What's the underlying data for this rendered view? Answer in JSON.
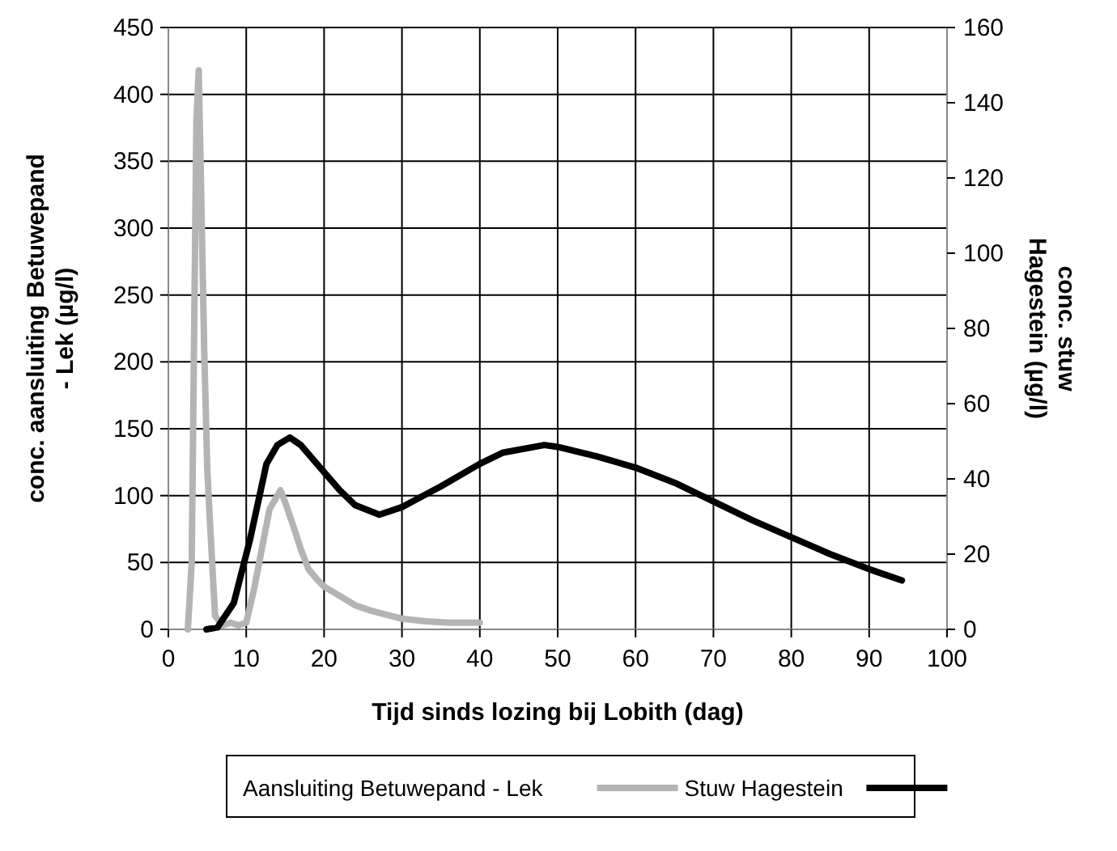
{
  "chart_data": {
    "type": "line",
    "xlabel": "Tijd sinds lozing bij Lobith (dag)",
    "ylabel": "conc. aansluiting Betuwepand - Lek (µg/l)",
    "y2label": "conc. stuw Hagestein (µg/l)",
    "xlim": [
      0,
      100
    ],
    "xticks": [
      0,
      10,
      20,
      30,
      40,
      50,
      60,
      70,
      80,
      90,
      100
    ],
    "ylim": [
      0,
      450
    ],
    "yticks": [
      0,
      50,
      100,
      150,
      200,
      250,
      300,
      350,
      400,
      450
    ],
    "y2lim": [
      0,
      160
    ],
    "y2ticks": [
      0,
      20,
      40,
      60,
      80,
      100,
      120,
      140,
      160
    ],
    "grid": true,
    "legend": "bottom",
    "marker": "none",
    "line_style": "solid",
    "series": [
      {
        "name": "Aansluiting Betuwepand - Lek",
        "color": "#b4b4b4",
        "x": [
          2.5,
          3.0,
          3.6,
          3.9,
          4.2,
          4.6,
          5.0,
          5.3,
          6.0,
          7,
          8,
          9,
          10,
          11,
          12,
          13,
          14.4,
          15,
          16,
          17,
          18,
          19,
          20,
          22,
          24,
          26,
          28,
          30,
          33,
          36,
          40
        ],
        "values": [
          0,
          50,
          380,
          418,
          330,
          210,
          120,
          85,
          10,
          3,
          5,
          3,
          5,
          30,
          60,
          90,
          104,
          95,
          78,
          60,
          45,
          38,
          32,
          25,
          18,
          14,
          11,
          8,
          6,
          5,
          5
        ]
      },
      {
        "name": "Stuw Hagestein",
        "color": "#000000",
        "axis": "y2",
        "x": [
          4.9,
          6.3,
          8.4,
          10.5,
          12.6,
          14,
          15.6,
          17,
          19.5,
          22,
          24,
          27.1,
          30,
          35,
          40,
          43,
          48.3,
          50,
          55,
          60,
          65,
          70,
          75,
          80,
          85,
          90,
          94.2
        ],
        "values": [
          0,
          0.5,
          7,
          24,
          44,
          49,
          51,
          49,
          43,
          37,
          33,
          30.5,
          32.5,
          38,
          44,
          47,
          49,
          48.5,
          46,
          43,
          39,
          34,
          29,
          24.5,
          20,
          16,
          13
        ]
      }
    ]
  }
}
